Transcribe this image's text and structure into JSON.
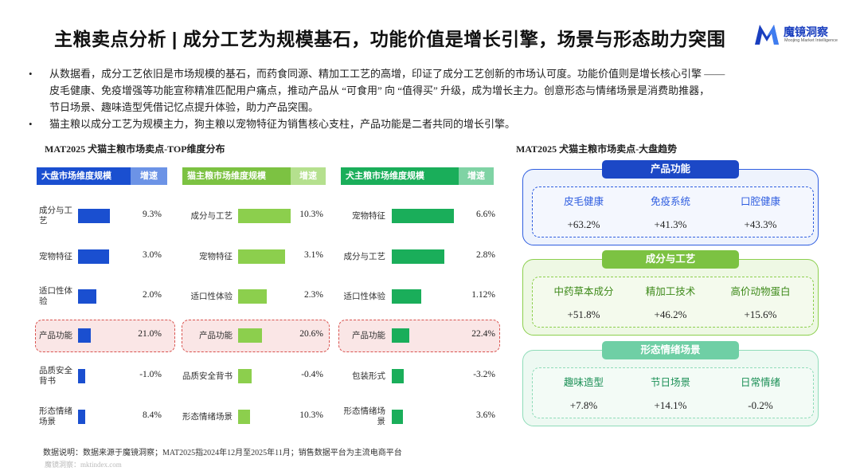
{
  "header": {
    "title": "主粮卖点分析 | 成分工艺为规模基石，功能价值是增长引擎，场景与形态助力突围",
    "logo_name": "魔镜洞察",
    "logo_sub": "Moojing Market Intelligence",
    "logo_color": "#1a3fbf"
  },
  "bullets": [
    {
      "marker": "•",
      "lines": [
        "从数据看，成分工艺依旧是市场规模的基石，而药食同源、精加工工艺的高增，印证了成分工艺创新的市场认可度。功能价值则是增长核心引擎 ——",
        "皮毛健康、免疫增强等功能宣称精准匹配用户痛点，推动产品从 “可食用” 向 “值得买” 升级，成为增长主力。创意形态与情绪场景是消费助推器，",
        "节日场景、趣味造型凭借记忆点提升体验，助力产品突围。"
      ]
    },
    {
      "marker": "•",
      "lines": [
        "猫主粮以成分工艺为规模主力，狗主粮以宠物特征为销售核心支柱，产品功能是二者共同的增长引擎。"
      ]
    }
  ],
  "chart_data": [
    {
      "type": "bar",
      "title": "MAT2025 犬猫主粮市场卖点-TOP维度分布",
      "panels": [
        {
          "header": "大盘市场维度规模",
          "growth_header": "增速",
          "color": "#1a4fd0",
          "header_color": "#1a4fd0",
          "growth_color": "#6c93e6",
          "categories": [
            "成分与工\n艺",
            "宠物特征",
            "适口性体\n验",
            "产品功能",
            "品质安全\n背书",
            "形态情绪\n场景"
          ],
          "values": [
            35,
            34,
            20,
            14,
            8,
            8
          ],
          "growth": [
            "9.3%",
            "3.0%",
            "2.0%",
            "21.0%",
            "-1.0%",
            "8.4%"
          ]
        },
        {
          "header": "猫主粮市场维度规模",
          "growth_header": "增速",
          "color": "#8ccf4d",
          "header_color": "#7cc242",
          "growth_color": "#b5e08e",
          "categories": [
            "成分与工艺",
            "宠物特征",
            "适口性体验",
            "产品功能",
            "品质安全背书",
            "形态情绪场景"
          ],
          "values": [
            62,
            55,
            34,
            28,
            16,
            14
          ],
          "growth": [
            "10.3%",
            "3.1%",
            "2.3%",
            "20.6%",
            "-0.4%",
            "10.3%"
          ]
        },
        {
          "header": "犬主粮市场维度规模",
          "growth_header": "增速",
          "color": "#1aae5a",
          "header_color": "#1aae5a",
          "growth_color": "#7fd3a4",
          "categories": [
            "宠物特征",
            "成分与工艺",
            "适口性体验",
            "产品功能",
            "包装形式",
            "形态情绪场\n景"
          ],
          "values": [
            73,
            62,
            35,
            21,
            14,
            13
          ],
          "growth": [
            "6.6%",
            "2.8%",
            "1.12%",
            "22.4%",
            "-3.2%",
            "3.6%"
          ]
        }
      ],
      "highlight_category": "产品功能"
    },
    {
      "type": "table",
      "title": "MAT2025 犬猫主粮市场卖点-大盘趋势",
      "groups": [
        {
          "name": "产品功能",
          "pill_color": "#1c48c6",
          "border_color": "#2f5ee0",
          "bg_color": "#eef3fd",
          "name_color": "#2f5ee0",
          "items": [
            {
              "label": "皮毛健康",
              "value": "+63.2%"
            },
            {
              "label": "免疫系统",
              "value": "+41.3%"
            },
            {
              "label": "口腔健康",
              "value": "+43.3%"
            }
          ]
        },
        {
          "name": "成分与工艺",
          "pill_color": "#7cc242",
          "border_color": "#8ccf4d",
          "bg_color": "#eef8e4",
          "name_color": "#3e8a1a",
          "items": [
            {
              "label": "中药草本成分",
              "value": "+51.8%"
            },
            {
              "label": "精加工技术",
              "value": "+46.2%"
            },
            {
              "label": "高价动物蛋白",
              "value": "+15.6%"
            }
          ]
        },
        {
          "name": "形态情绪场景",
          "pill_color": "#6fcfa5",
          "border_color": "#8fdcb9",
          "bg_color": "#edf9f2",
          "name_color": "#1a8f55",
          "items": [
            {
              "label": "趣味造型",
              "value": "+7.8%"
            },
            {
              "label": "节日场景",
              "value": "+14.1%"
            },
            {
              "label": "日常情绪",
              "value": "-0.2%"
            }
          ]
        }
      ]
    }
  ],
  "footer": {
    "source": "数据说明：数据来源于魔镜洞察；MAT2025指2024年12月至2025年11月；销售数据平台为主流电商平台",
    "watermark": "魔镜洞察：mktindex.com"
  }
}
